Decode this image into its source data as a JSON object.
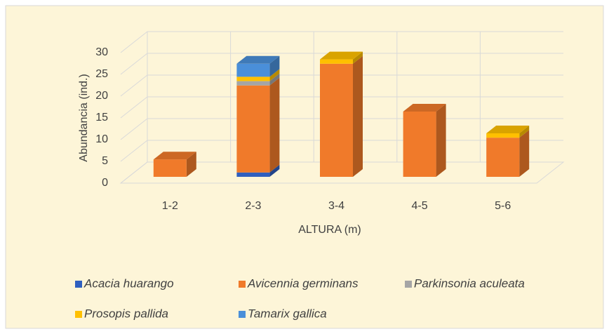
{
  "chart_data": {
    "type": "bar",
    "stacked": true,
    "three_d": true,
    "x_label": "ALTURA (m)",
    "y_label": "Abundancia (ind.)",
    "categories": [
      "1-2",
      "2-3",
      "3-4",
      "4-5",
      "5-6"
    ],
    "series": [
      {
        "name": "Acacia huarango",
        "color": "#2f5fbf",
        "values": [
          0,
          1,
          0,
          0,
          0
        ]
      },
      {
        "name": "Avicennia germinans",
        "color": "#f07a2a",
        "values": [
          4,
          20,
          26,
          15,
          9
        ]
      },
      {
        "name": "Parkinsonia aculeata",
        "color": "#a5a5a5",
        "values": [
          0,
          1,
          0,
          0,
          0
        ]
      },
      {
        "name": "Prosopis pallida",
        "color": "#ffc000",
        "values": [
          0,
          1,
          1,
          0,
          1
        ]
      },
      {
        "name": "Tamarix gallica",
        "color": "#4a8fd9",
        "values": [
          0,
          3,
          0,
          0,
          0
        ]
      }
    ],
    "ylim": [
      0,
      30
    ],
    "yticks": [
      0,
      5,
      10,
      15,
      20,
      25,
      30
    ],
    "grid": true,
    "legend": "bottom"
  }
}
